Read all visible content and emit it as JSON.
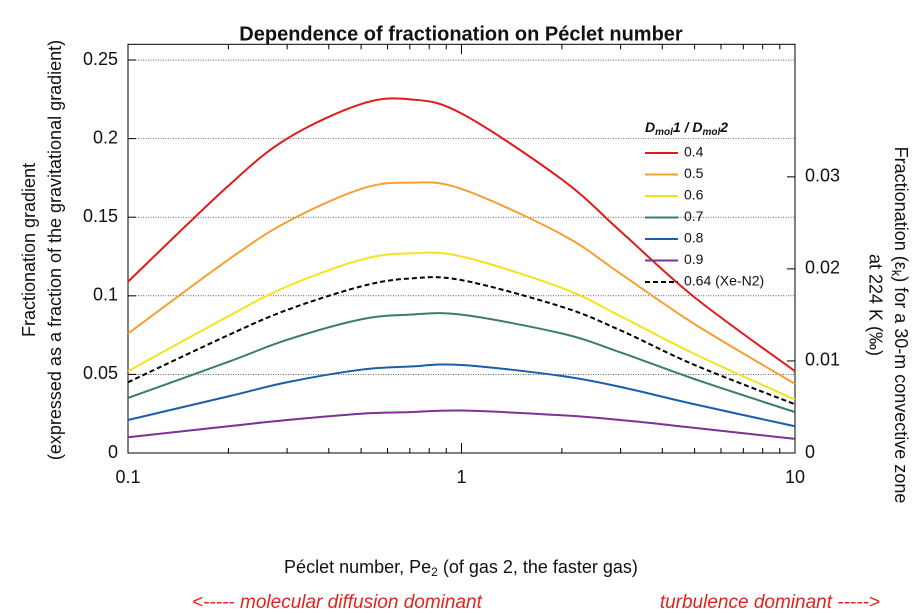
{
  "chart_data": {
    "type": "line",
    "title": "Dependence of fractionation on Péclet number",
    "x_label": [
      "Péclet number, Pe",
      "2",
      " (of gas 2, the faster gas)"
    ],
    "y_label": [
      "Fractionation gradient",
      "(expressed as a fraction of the gravitational gradient)"
    ],
    "y2_label": [
      "Fractionation (ε",
      "k",
      ") for a 30-m convective zone",
      "at 224 K (‰)"
    ],
    "annotations": [
      "<----- molecular diffusion dominant",
      "turbulence dominant ----->"
    ],
    "legend_title": [
      "D",
      "mol",
      "1 / ",
      "D",
      "mol",
      "2"
    ],
    "x": [
      0.1,
      0.2,
      0.3,
      0.5,
      0.7,
      1,
      2,
      3,
      5,
      10
    ],
    "series": [
      {
        "name": "0.4",
        "color": "#e31a1c",
        "values": [
          0.109,
          0.17,
          0.2,
          0.222,
          0.225,
          0.216,
          0.174,
          0.141,
          0.099,
          0.052
        ]
      },
      {
        "name": "0.5",
        "color": "#f6a033",
        "values": [
          0.076,
          0.123,
          0.147,
          0.168,
          0.172,
          0.168,
          0.139,
          0.114,
          0.082,
          0.044
        ]
      },
      {
        "name": "0.6",
        "color": "#f5e21e",
        "values": [
          0.052,
          0.087,
          0.106,
          0.123,
          0.127,
          0.125,
          0.105,
          0.087,
          0.063,
          0.034
        ]
      },
      {
        "name": "0.7",
        "color": "#3b7f5b",
        "values": [
          0.035,
          0.058,
          0.072,
          0.085,
          0.088,
          0.088,
          0.076,
          0.064,
          0.047,
          0.026
        ]
      },
      {
        "name": "0.8",
        "color": "#1a5ea8",
        "values": [
          0.021,
          0.036,
          0.045,
          0.053,
          0.055,
          0.056,
          0.049,
          0.042,
          0.031,
          0.017
        ]
      },
      {
        "name": "0.9",
        "color": "#7b3294",
        "values": [
          0.01,
          0.017,
          0.021,
          0.025,
          0.026,
          0.027,
          0.024,
          0.021,
          0.016,
          0.009
        ]
      },
      {
        "name": "0.64 (Xe-N2)",
        "color": "#000000",
        "dashed": true,
        "values": [
          0.045,
          0.075,
          0.091,
          0.106,
          0.111,
          0.11,
          0.093,
          0.078,
          0.056,
          0.031
        ]
      }
    ],
    "xscale": "log",
    "xlim": [
      0.1,
      10
    ],
    "xticks": [
      0.1,
      1,
      10
    ],
    "xminorticks": [
      0.2,
      0.3,
      0.4,
      0.5,
      0.6,
      0.7,
      0.8,
      0.9,
      2,
      3,
      4,
      5,
      6,
      7,
      8,
      9
    ],
    "ylim": [
      0,
      0.26
    ],
    "yticks": [
      0,
      0.05,
      0.1,
      0.15,
      0.2,
      0.25
    ],
    "y2lim": [
      0,
      0.0444
    ],
    "y2ticks": [
      0,
      0.01,
      0.02,
      0.03
    ],
    "grid": true,
    "legend": "upper right"
  }
}
